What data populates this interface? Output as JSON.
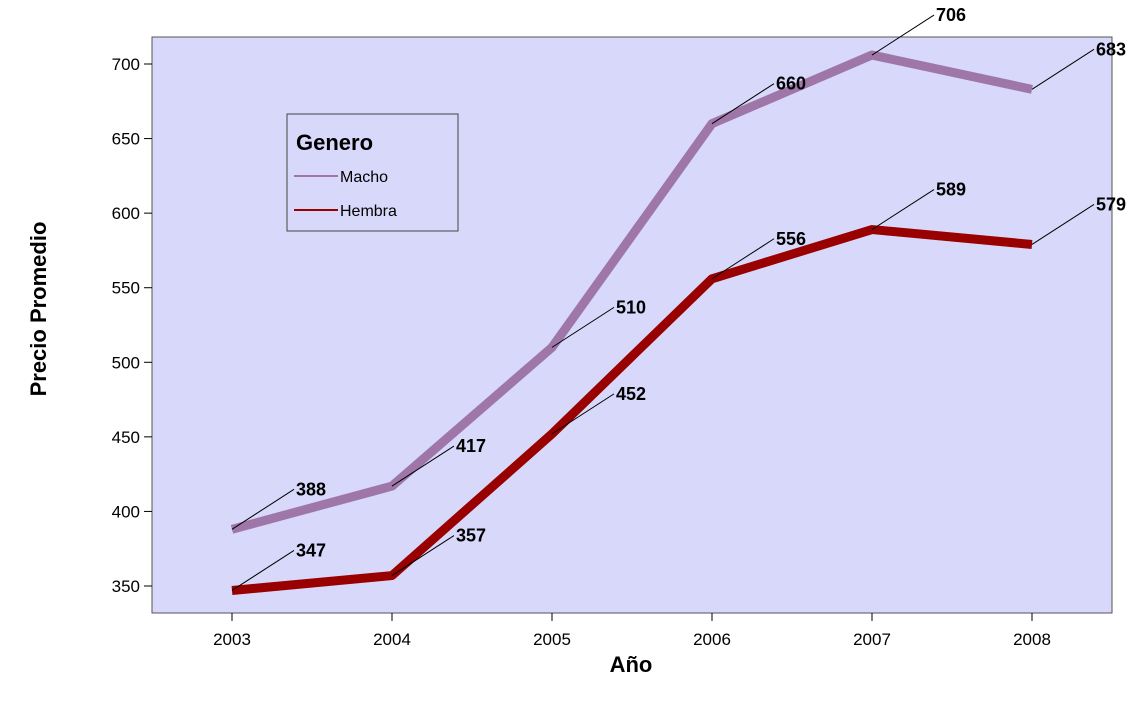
{
  "chart_data": {
    "type": "line",
    "xlabel": "Año",
    "ylabel": "Precio Promedio",
    "x": [
      "2003",
      "2004",
      "2005",
      "2006",
      "2007",
      "2008"
    ],
    "ylim": [
      330,
      720
    ],
    "yticks": [
      350,
      400,
      450,
      500,
      550,
      600,
      650,
      700
    ],
    "grid": false,
    "plot_background": "#d8d8fa",
    "legend": {
      "title": "Genero",
      "placement": "top-left"
    },
    "series": [
      {
        "name": "Macho",
        "color": "#9e77a8",
        "values": [
          388,
          417,
          510,
          660,
          706,
          683
        ],
        "labels": [
          "388",
          "417",
          "510",
          "660",
          "706",
          "683"
        ]
      },
      {
        "name": "Hembra",
        "color": "#990000",
        "values": [
          347,
          357,
          452,
          556,
          589,
          579
        ],
        "labels": [
          "347",
          "357",
          "452",
          "556",
          "589",
          "579"
        ]
      }
    ]
  }
}
